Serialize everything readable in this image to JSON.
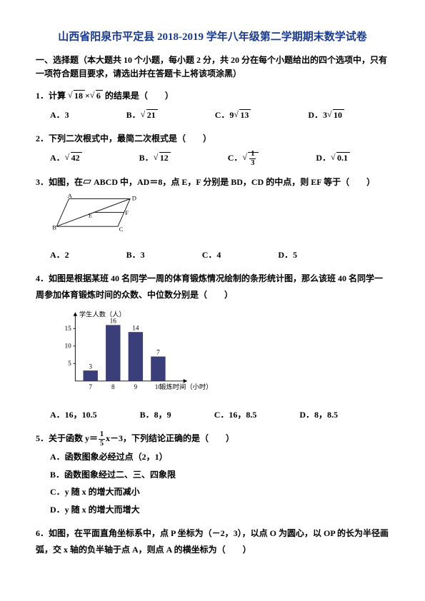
{
  "title": "山西省阳泉市平定县 2018-2019 学年八年级第二学期期末数学试卷",
  "section": "一、选择题（本大题共 10 个小题，每小题 2 分，共 20 分在每个小题给出的四个选项中，只有一项符合题目要求，请选出并在答题卡上将该项涂黑）",
  "q1": {
    "text": "1．计算",
    "tail": "的结果是（　　）",
    "r1": "18",
    "r2": "6",
    "A": "A．3",
    "B": "B．",
    "Bv": "21",
    "C": "C．9",
    "Cv": "13",
    "D": "D．3",
    "Dv": "10"
  },
  "q2": {
    "text": "2．下列二次根式中，最简二次根式是（　　）",
    "A": "A．",
    "Av": "42",
    "B": "B．",
    "Bv": "12",
    "C": "C．",
    "D": "D．",
    "Dv": "0.1",
    "Cnum": "1",
    "Cden": "3"
  },
  "q3": {
    "text": "3．如图，在▱ ABCD 中，AD＝8，点 E，F 分别是 BD，CD 的中点，则 EF 等于（　　）",
    "A": "A．2",
    "B": "B．3",
    "C": "C．4",
    "D": "D．5",
    "labels": {
      "A": "A",
      "B": "B",
      "C": "C",
      "D": "D",
      "E": "E",
      "F": "F"
    }
  },
  "q4": {
    "text": "4．如图是根据某班 40 名同学一周的体育锻炼情况绘制的条形统计图，那么该班 40 名同学一周参加体育锻炼时间的众数、中位数分别是（　　）",
    "A": "A．16，10.5",
    "B": "B．8，9",
    "C": "C．16，8.5",
    "D": "D．8，8.5",
    "chart": {
      "ylabel": "学生人数（人）",
      "xlabel": "锻炼时间（小时）",
      "categories": [
        "7",
        "8",
        "9",
        "10"
      ],
      "values": [
        3,
        16,
        14,
        7
      ],
      "value_labels": [
        "3",
        "16",
        "14",
        "7"
      ],
      "yticks": [
        "5",
        "10",
        "15"
      ],
      "ymax": 18,
      "bar_color": "#3a3f7a",
      "axis_color": "#000000",
      "label_fontsize": 10
    }
  },
  "q5": {
    "pre": "5．关于函数 y＝",
    "num": "1",
    "den": "5",
    "post": "x－3，下列结论正确的是（　　）",
    "A": "A．函数图象必经过点（2，1）",
    "B": "B．函数图象经过二、三、四象限",
    "C": "C．y 随 x 的增大而减小",
    "D": "D．y 随 x 的增大而增大"
  },
  "q6": {
    "text": "6．如图，在平面直角坐标系中，点 P 坐标为（－2，3），以点 O 为圆心，以 OP 的长为半径画弧，交 x 轴的负半轴于点 A，则点 A 的横坐标为（　　）"
  }
}
